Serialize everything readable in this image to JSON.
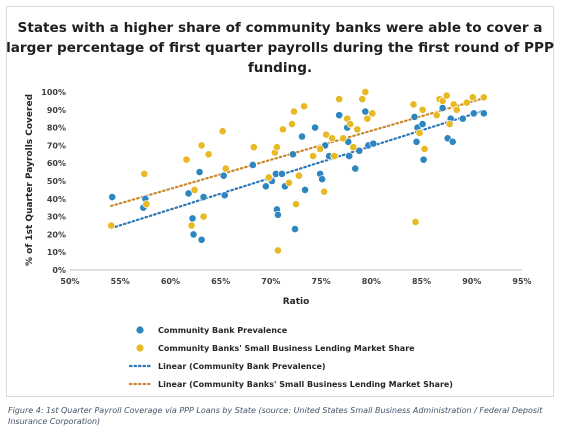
{
  "chart_data": {
    "type": "scatter",
    "title": "States with a higher share of community banks were able to cover a larger percentage of first quarter payrolls during the first round of PPP funding.",
    "xlabel": "Ratio",
    "ylabel": "% of 1st Quarter Payrolls Covered",
    "xlim": [
      0.5,
      0.95
    ],
    "ylim": [
      0,
      1.0
    ],
    "x_ticks": [
      "50%",
      "55%",
      "60%",
      "65%",
      "70%",
      "75%",
      "80%",
      "85%",
      "90%",
      "95%"
    ],
    "y_ticks": [
      "0%",
      "10%",
      "20%",
      "30%",
      "40%",
      "50%",
      "60%",
      "70%",
      "80%",
      "90%",
      "100%"
    ],
    "grid": false,
    "legend_position": "bottom",
    "series": [
      {
        "name": "Community Bank Prevalence",
        "color": "#2e86c1",
        "marker": "circle",
        "points": [
          [
            0.542,
            0.41
          ],
          [
            0.573,
            0.35
          ],
          [
            0.575,
            0.4
          ],
          [
            0.618,
            0.43
          ],
          [
            0.622,
            0.29
          ],
          [
            0.623,
            0.2
          ],
          [
            0.629,
            0.55
          ],
          [
            0.633,
            0.41
          ],
          [
            0.631,
            0.17
          ],
          [
            0.654,
            0.42
          ],
          [
            0.653,
            0.53
          ],
          [
            0.682,
            0.59
          ],
          [
            0.695,
            0.47
          ],
          [
            0.701,
            0.5
          ],
          [
            0.705,
            0.54
          ],
          [
            0.706,
            0.34
          ],
          [
            0.707,
            0.31
          ],
          [
            0.711,
            0.54
          ],
          [
            0.714,
            0.47
          ],
          [
            0.722,
            0.65
          ],
          [
            0.724,
            0.23
          ],
          [
            0.731,
            0.75
          ],
          [
            0.734,
            0.45
          ],
          [
            0.744,
            0.8
          ],
          [
            0.749,
            0.54
          ],
          [
            0.751,
            0.51
          ],
          [
            0.754,
            0.7
          ],
          [
            0.758,
            0.64
          ],
          [
            0.764,
            0.64
          ],
          [
            0.768,
            0.87
          ],
          [
            0.776,
            0.8
          ],
          [
            0.777,
            0.72
          ],
          [
            0.778,
            0.64
          ],
          [
            0.784,
            0.57
          ],
          [
            0.788,
            0.67
          ],
          [
            0.794,
            0.89
          ],
          [
            0.797,
            0.7
          ],
          [
            0.802,
            0.71
          ],
          [
            0.843,
            0.86
          ],
          [
            0.845,
            0.72
          ],
          [
            0.846,
            0.8
          ],
          [
            0.851,
            0.82
          ],
          [
            0.852,
            0.62
          ],
          [
            0.869,
            0.96
          ],
          [
            0.871,
            0.91
          ],
          [
            0.876,
            0.74
          ],
          [
            0.879,
            0.85
          ],
          [
            0.881,
            0.72
          ],
          [
            0.891,
            0.85
          ],
          [
            0.902,
            0.88
          ],
          [
            0.912,
            0.88
          ]
        ]
      },
      {
        "name": "Community Banks' Small Business Lending Market Share",
        "color": "#e8b923",
        "marker": "circle",
        "points": [
          [
            0.541,
            0.25
          ],
          [
            0.574,
            0.54
          ],
          [
            0.576,
            0.37
          ],
          [
            0.616,
            0.62
          ],
          [
            0.621,
            0.25
          ],
          [
            0.624,
            0.45
          ],
          [
            0.631,
            0.7
          ],
          [
            0.633,
            0.3
          ],
          [
            0.638,
            0.65
          ],
          [
            0.652,
            0.78
          ],
          [
            0.655,
            0.57
          ],
          [
            0.683,
            0.69
          ],
          [
            0.698,
            0.52
          ],
          [
            0.704,
            0.66
          ],
          [
            0.706,
            0.69
          ],
          [
            0.707,
            0.11
          ],
          [
            0.712,
            0.79
          ],
          [
            0.718,
            0.49
          ],
          [
            0.721,
            0.82
          ],
          [
            0.723,
            0.89
          ],
          [
            0.725,
            0.37
          ],
          [
            0.728,
            0.53
          ],
          [
            0.733,
            0.92
          ],
          [
            0.742,
            0.64
          ],
          [
            0.749,
            0.68
          ],
          [
            0.753,
            0.44
          ],
          [
            0.755,
            0.76
          ],
          [
            0.761,
            0.74
          ],
          [
            0.763,
            0.64
          ],
          [
            0.768,
            0.96
          ],
          [
            0.772,
            0.74
          ],
          [
            0.776,
            0.85
          ],
          [
            0.779,
            0.82
          ],
          [
            0.782,
            0.69
          ],
          [
            0.786,
            0.79
          ],
          [
            0.791,
            0.96
          ],
          [
            0.794,
            1.0
          ],
          [
            0.796,
            0.85
          ],
          [
            0.801,
            0.88
          ],
          [
            0.842,
            0.93
          ],
          [
            0.844,
            0.27
          ],
          [
            0.848,
            0.77
          ],
          [
            0.851,
            0.9
          ],
          [
            0.853,
            0.68
          ],
          [
            0.865,
            0.87
          ],
          [
            0.868,
            0.96
          ],
          [
            0.871,
            0.95
          ],
          [
            0.875,
            0.98
          ],
          [
            0.878,
            0.82
          ],
          [
            0.882,
            0.93
          ],
          [
            0.885,
            0.9
          ],
          [
            0.895,
            0.94
          ],
          [
            0.912,
            0.97
          ],
          [
            0.901,
            0.97
          ]
        ]
      },
      {
        "name": "Linear (Community Bank Prevalence)",
        "color": "#2e75b6",
        "type": "trendline",
        "points": [
          [
            0.541,
            0.235
          ],
          [
            0.912,
            0.895
          ]
        ]
      },
      {
        "name": "Linear (Community Banks' Small Business Lending Market Share)",
        "color": "#c9892f",
        "type": "trendline",
        "points": [
          [
            0.541,
            0.36
          ],
          [
            0.912,
            0.965
          ]
        ]
      }
    ]
  },
  "caption": {
    "figure_label": "Figure 4:",
    "text": " 1st Quarter Payroll Coverage via PPP Loans by State (source: United States Small Business Administration / Federal Deposit Insurance Corporation)"
  }
}
